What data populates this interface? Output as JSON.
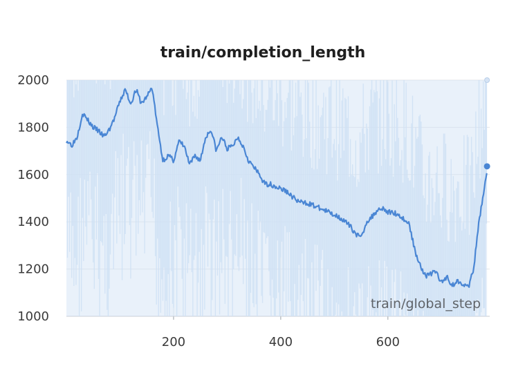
{
  "chart_data": {
    "type": "line",
    "title": "train/completion_length",
    "xlabel": "train/global_step",
    "ylabel": "",
    "xlim": [
      0,
      790
    ],
    "ylim": [
      1000,
      2000
    ],
    "x_ticks": [
      200,
      400,
      600
    ],
    "y_ticks": [
      1000,
      1200,
      1400,
      1600,
      1800,
      2000
    ],
    "grid": true,
    "series": [
      {
        "role": "smoothed",
        "color": "#4a86d4",
        "x": [
          0,
          10,
          20,
          30,
          40,
          50,
          60,
          70,
          80,
          90,
          100,
          110,
          120,
          130,
          140,
          150,
          160,
          170,
          180,
          190,
          200,
          210,
          220,
          230,
          240,
          250,
          260,
          270,
          280,
          290,
          300,
          310,
          320,
          330,
          340,
          350,
          360,
          370,
          380,
          390,
          400,
          410,
          420,
          430,
          440,
          450,
          460,
          470,
          480,
          490,
          500,
          510,
          520,
          530,
          540,
          550,
          560,
          570,
          580,
          590,
          600,
          610,
          620,
          630,
          640,
          650,
          660,
          670,
          680,
          690,
          700,
          710,
          720,
          730,
          740,
          750,
          760,
          770,
          785
        ],
        "y": [
          1745,
          1725,
          1760,
          1860,
          1830,
          1800,
          1785,
          1760,
          1790,
          1840,
          1910,
          1960,
          1900,
          1960,
          1900,
          1930,
          1970,
          1800,
          1660,
          1680,
          1660,
          1740,
          1720,
          1640,
          1680,
          1660,
          1760,
          1790,
          1700,
          1760,
          1710,
          1720,
          1760,
          1720,
          1660,
          1630,
          1600,
          1560,
          1560,
          1550,
          1540,
          1530,
          1510,
          1490,
          1480,
          1480,
          1470,
          1460,
          1450,
          1440,
          1430,
          1420,
          1400,
          1380,
          1350,
          1330,
          1400,
          1420,
          1450,
          1460,
          1440,
          1440,
          1430,
          1410,
          1390,
          1280,
          1220,
          1170,
          1180,
          1190,
          1140,
          1170,
          1130,
          1150,
          1140,
          1120,
          1200,
          1400,
          1620
        ]
      }
    ],
    "raw_band": {
      "color": "#cfe1f5",
      "low": 1000,
      "high": 2000
    },
    "last_point": {
      "x": 785,
      "y": 1635
    }
  }
}
